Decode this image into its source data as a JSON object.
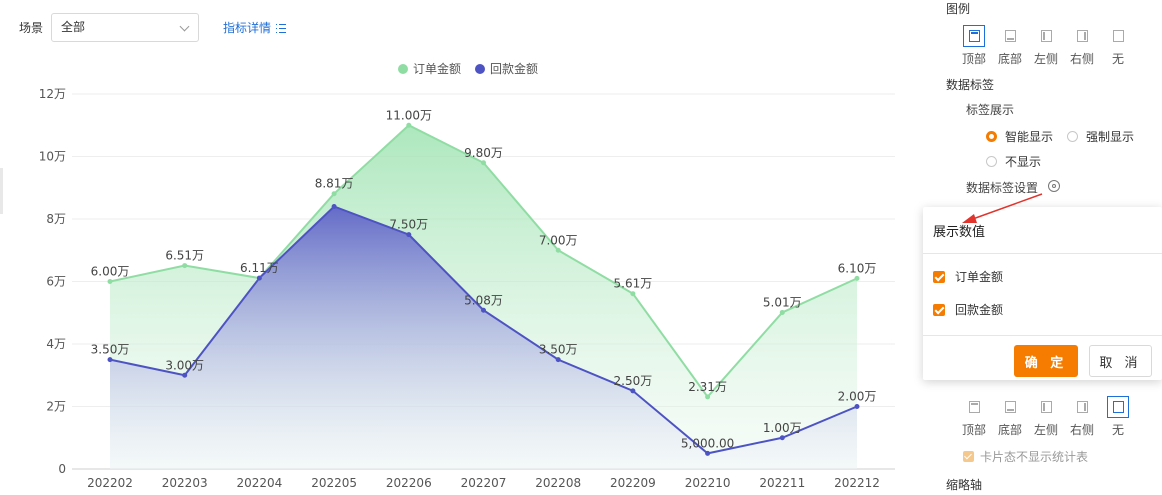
{
  "toolbar": {
    "scene_label": "场景",
    "scene_value": "全部",
    "metric_link": "指标详情"
  },
  "chart_data": {
    "type": "area",
    "categories": [
      "202202",
      "202203",
      "202204",
      "202205",
      "202206",
      "202207",
      "202208",
      "202209",
      "202210",
      "202211",
      "202212"
    ],
    "yticks": [
      "0",
      "2万",
      "4万",
      "6万",
      "8万",
      "10万",
      "12万"
    ],
    "ylim": [
      0,
      12
    ],
    "series": [
      {
        "name": "订单金额",
        "color": "#8fdda3",
        "values": [
          6.0,
          6.51,
          6.11,
          8.81,
          11.0,
          9.8,
          7.0,
          5.61,
          2.31,
          5.01,
          6.1
        ],
        "labels": [
          "6.00万",
          "6.51万",
          "6.11万",
          "8.81万",
          "11.00万",
          "9.80万",
          "7.00万",
          "5.61万",
          "2.31万",
          "5.01万",
          "6.10万"
        ]
      },
      {
        "name": "回款金额",
        "color": "#4e53c3",
        "values": [
          3.5,
          3.0,
          6.11,
          8.4,
          7.5,
          5.08,
          3.5,
          2.5,
          0.5,
          1.0,
          2.0
        ],
        "labels": [
          "3.50万",
          "3.00万",
          "",
          "",
          "7.50万",
          "5.08万",
          "3.50万",
          "2.50万",
          "5,000.00",
          "1.00万",
          "2.00万"
        ]
      }
    ],
    "legend_position": "top-center",
    "grid": true
  },
  "panel": {
    "legend_title": "图例",
    "legend_options": [
      "顶部",
      "底部",
      "左侧",
      "右侧",
      "无"
    ],
    "legend_selected": "顶部",
    "data_label_title": "数据标签",
    "label_display_title": "标签展示",
    "label_display_options": [
      "智能显示",
      "强制显示",
      "不显示"
    ],
    "label_display_selected": "智能显示",
    "label_settings": "数据标签设置",
    "lower_options": [
      "顶部",
      "底部",
      "左侧",
      "右侧",
      "无"
    ],
    "lower_selected": "无",
    "card_stats_checkbox": "卡片态不显示统计表",
    "thumbnail_axis": "缩略轴"
  },
  "popover": {
    "title": "展示数值",
    "items": [
      "订单金额",
      "回款金额"
    ],
    "ok": "确 定",
    "cancel": "取 消"
  }
}
